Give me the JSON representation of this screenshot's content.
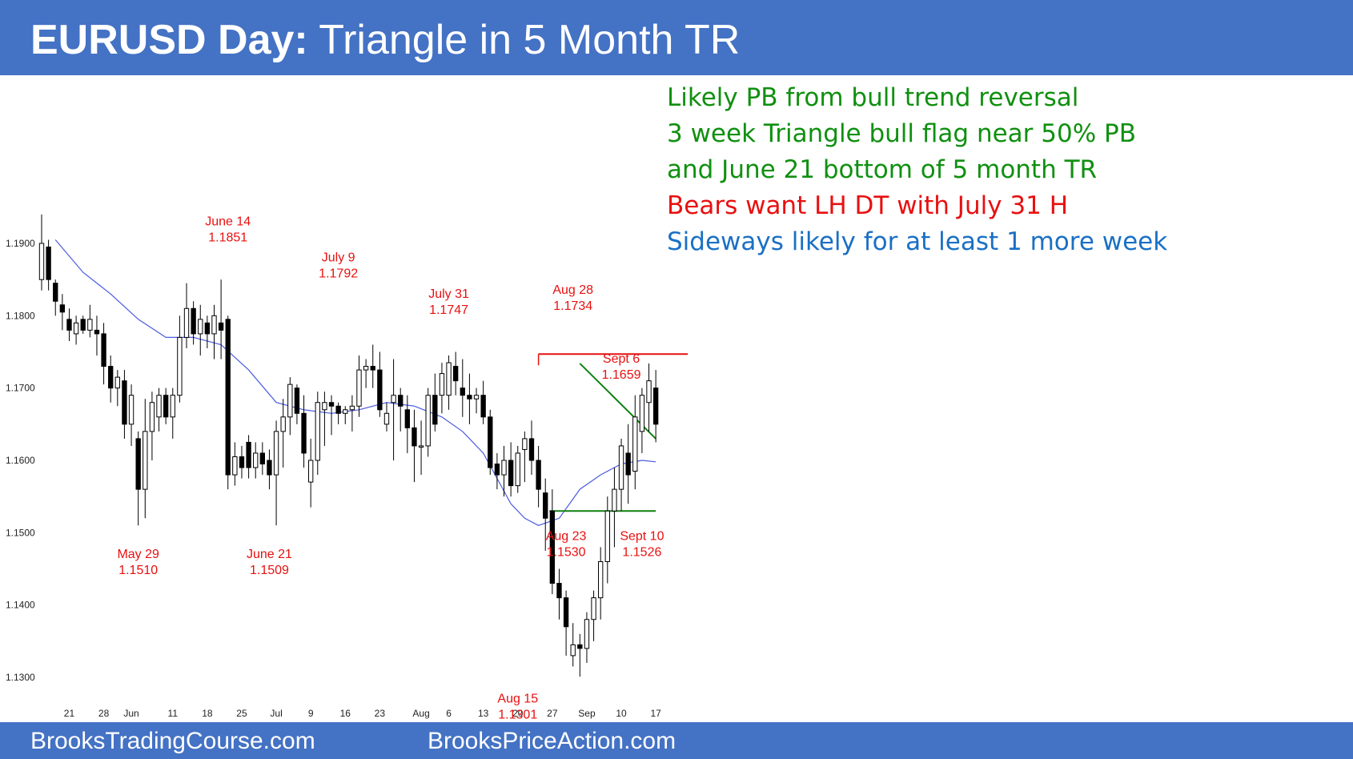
{
  "header": {
    "title_bold": "EURUSD Day:",
    "title_rest": "Triangle in 5 Month TR"
  },
  "notes": [
    {
      "text": "Likely PB from bull trend reversal",
      "color": "#109010"
    },
    {
      "text": "3 week Triangle bull flag near 50% PB",
      "color": "#109010"
    },
    {
      "text": "and June 21 bottom of 5 month TR",
      "color": "#109010"
    },
    {
      "text": "Bears want LH DT with July 31 H",
      "color": "#e81010"
    },
    {
      "text": "Sideways likely for at least 1 more week",
      "color": "#1a6fc4"
    }
  ],
  "footer": {
    "left_link": "BrooksTradingCourse.com",
    "right_link": "BrooksPriceAction.com"
  },
  "colors": {
    "header_bg": "#4472c4",
    "bull_candle": "#ffffff",
    "bear_candle": "#000000",
    "moving_average": "#4a5be0",
    "resistance_line": "#e81010",
    "triangle_lines": "#108010",
    "annotation_text": "#e81010"
  },
  "chart_data": {
    "type": "candlestick",
    "y_tick_labels": [
      "1.1900",
      "1.1800",
      "1.1700",
      "1.1600",
      "1.1500",
      "1.1400",
      "1.1300"
    ],
    "y_ticks": [
      1.19,
      1.18,
      1.17,
      1.16,
      1.15,
      1.14,
      1.13
    ],
    "ylim": [
      1.1265,
      1.1965
    ],
    "x_tick_labels": [
      "21",
      "28",
      "Jun",
      "11",
      "18",
      "25",
      "Jul",
      "9",
      "16",
      "23",
      "Aug",
      "6",
      "13",
      "20",
      "27",
      "Sep",
      "10",
      "17"
    ],
    "x_tick_bar_index": [
      4,
      9,
      13,
      19,
      24,
      29,
      34,
      39,
      44,
      49,
      55,
      59,
      64,
      69,
      74,
      79,
      84,
      89
    ],
    "bar_count": 90,
    "candles": [
      [
        1.185,
        1.194,
        1.1835,
        1.19
      ],
      [
        1.1895,
        1.1905,
        1.1835,
        1.185
      ],
      [
        1.1845,
        1.185,
        1.18,
        1.182
      ],
      [
        1.1815,
        1.183,
        1.178,
        1.1805
      ],
      [
        1.1795,
        1.181,
        1.1765,
        1.178
      ],
      [
        1.1775,
        1.18,
        1.176,
        1.179
      ],
      [
        1.1795,
        1.18,
        1.1775,
        1.178
      ],
      [
        1.178,
        1.1815,
        1.177,
        1.1795
      ],
      [
        1.178,
        1.18,
        1.1745,
        1.1775
      ],
      [
        1.1775,
        1.179,
        1.1705,
        1.173
      ],
      [
        1.173,
        1.1745,
        1.168,
        1.17
      ],
      [
        1.17,
        1.1725,
        1.1675,
        1.1715
      ],
      [
        1.171,
        1.1725,
        1.163,
        1.165
      ],
      [
        1.165,
        1.1705,
        1.162,
        1.169
      ],
      [
        1.163,
        1.164,
        1.151,
        1.156
      ],
      [
        1.156,
        1.1685,
        1.152,
        1.164
      ],
      [
        1.164,
        1.1695,
        1.16,
        1.168
      ],
      [
        1.166,
        1.17,
        1.164,
        1.169
      ],
      [
        1.169,
        1.17,
        1.165,
        1.166
      ],
      [
        1.166,
        1.17,
        1.163,
        1.169
      ],
      [
        1.169,
        1.18,
        1.168,
        1.177
      ],
      [
        1.177,
        1.1845,
        1.1755,
        1.181
      ],
      [
        1.181,
        1.182,
        1.176,
        1.1775
      ],
      [
        1.1775,
        1.1815,
        1.1745,
        1.1795
      ],
      [
        1.179,
        1.18,
        1.1755,
        1.1775
      ],
      [
        1.1775,
        1.1815,
        1.174,
        1.18
      ],
      [
        1.179,
        1.185,
        1.174,
        1.178
      ],
      [
        1.1795,
        1.18,
        1.156,
        1.158
      ],
      [
        1.158,
        1.1625,
        1.1565,
        1.1605
      ],
      [
        1.1605,
        1.162,
        1.1575,
        1.159
      ],
      [
        1.1625,
        1.1635,
        1.1575,
        1.159
      ],
      [
        1.159,
        1.1625,
        1.1575,
        1.161
      ],
      [
        1.161,
        1.1625,
        1.158,
        1.1595
      ],
      [
        1.16,
        1.1615,
        1.156,
        1.158
      ],
      [
        1.158,
        1.1655,
        1.151,
        1.164
      ],
      [
        1.164,
        1.1685,
        1.159,
        1.166
      ],
      [
        1.166,
        1.1715,
        1.1635,
        1.1705
      ],
      [
        1.17,
        1.1705,
        1.165,
        1.1665
      ],
      [
        1.1665,
        1.169,
        1.159,
        1.161
      ],
      [
        1.157,
        1.163,
        1.1535,
        1.16
      ],
      [
        1.16,
        1.1695,
        1.158,
        1.168
      ],
      [
        1.167,
        1.1695,
        1.162,
        1.168
      ],
      [
        1.168,
        1.169,
        1.1635,
        1.1675
      ],
      [
        1.1675,
        1.168,
        1.165,
        1.1665
      ],
      [
        1.1665,
        1.1675,
        1.165,
        1.167
      ],
      [
        1.167,
        1.169,
        1.164,
        1.1675
      ],
      [
        1.1675,
        1.1745,
        1.166,
        1.1725
      ],
      [
        1.1725,
        1.174,
        1.17,
        1.173
      ],
      [
        1.173,
        1.176,
        1.17,
        1.1725
      ],
      [
        1.1725,
        1.175,
        1.166,
        1.167
      ],
      [
        1.165,
        1.168,
        1.164,
        1.1665
      ],
      [
        1.168,
        1.174,
        1.16,
        1.169
      ],
      [
        1.169,
        1.17,
        1.164,
        1.1675
      ],
      [
        1.167,
        1.169,
        1.161,
        1.1645
      ],
      [
        1.1645,
        1.167,
        1.157,
        1.162
      ],
      [
        1.162,
        1.1655,
        1.158,
        1.162
      ],
      [
        1.162,
        1.17,
        1.1605,
        1.169
      ],
      [
        1.169,
        1.172,
        1.164,
        1.165
      ],
      [
        1.169,
        1.1735,
        1.1665,
        1.172
      ],
      [
        1.169,
        1.1745,
        1.167,
        1.1735
      ],
      [
        1.173,
        1.175,
        1.169,
        1.171
      ],
      [
        1.17,
        1.174,
        1.166,
        1.169
      ],
      [
        1.169,
        1.172,
        1.165,
        1.1685
      ],
      [
        1.1685,
        1.17,
        1.1665,
        1.169
      ],
      [
        1.169,
        1.171,
        1.165,
        1.166
      ],
      [
        1.166,
        1.167,
        1.158,
        1.159
      ],
      [
        1.1595,
        1.161,
        1.156,
        1.158
      ],
      [
        1.158,
        1.162,
        1.155,
        1.16
      ],
      [
        1.16,
        1.1625,
        1.155,
        1.1565
      ],
      [
        1.1565,
        1.162,
        1.1555,
        1.161
      ],
      [
        1.1615,
        1.164,
        1.157,
        1.163
      ],
      [
        1.163,
        1.1655,
        1.158,
        1.16
      ],
      [
        1.16,
        1.162,
        1.1535,
        1.156
      ],
      [
        1.1555,
        1.1575,
        1.1475,
        1.152
      ],
      [
        1.153,
        1.156,
        1.1415,
        1.143
      ],
      [
        1.143,
        1.145,
        1.138,
        1.141
      ],
      [
        1.141,
        1.142,
        1.133,
        1.137
      ],
      [
        1.133,
        1.1375,
        1.1315,
        1.1345
      ],
      [
        1.1345,
        1.136,
        1.1301,
        1.134
      ],
      [
        1.134,
        1.139,
        1.132,
        1.138
      ],
      [
        1.138,
        1.142,
        1.135,
        1.141
      ],
      [
        1.141,
        1.148,
        1.138,
        1.146
      ],
      [
        1.146,
        1.155,
        1.143,
        1.153
      ],
      [
        1.153,
        1.159,
        1.148,
        1.156
      ],
      [
        1.156,
        1.163,
        1.153,
        1.162
      ],
      [
        1.161,
        1.165,
        1.154,
        1.158
      ],
      [
        1.1585,
        1.169,
        1.156,
        1.166
      ],
      [
        1.164,
        1.17,
        1.161,
        1.169
      ],
      [
        1.168,
        1.1734,
        1.164,
        1.171
      ],
      [
        1.17,
        1.1725,
        1.1625,
        1.165
      ]
    ],
    "moving_average": [
      [
        2,
        1.1905
      ],
      [
        6,
        1.186
      ],
      [
        10,
        1.183
      ],
      [
        14,
        1.1795
      ],
      [
        18,
        1.177
      ],
      [
        22,
        1.177
      ],
      [
        26,
        1.176
      ],
      [
        30,
        1.1725
      ],
      [
        34,
        1.168
      ],
      [
        38,
        1.167
      ],
      [
        42,
        1.1665
      ],
      [
        46,
        1.167
      ],
      [
        50,
        1.168
      ],
      [
        54,
        1.1675
      ],
      [
        58,
        1.166
      ],
      [
        61,
        1.164
      ],
      [
        64,
        1.161
      ],
      [
        66,
        1.1575
      ],
      [
        68,
        1.154
      ],
      [
        70,
        1.152
      ],
      [
        72,
        1.151
      ],
      [
        75,
        1.152
      ],
      [
        78,
        1.156
      ],
      [
        81,
        1.158
      ],
      [
        84,
        1.1595
      ],
      [
        87,
        1.16
      ],
      [
        89,
        1.1598
      ]
    ],
    "resistance_line": {
      "from_bar": 72,
      "to_bar": 89,
      "value": 1.1747
    },
    "triangle_upper": [
      [
        78,
        1.1734
      ],
      [
        89,
        1.163
      ]
    ],
    "triangle_lower": [
      [
        78,
        1.153
      ],
      [
        89,
        1.153
      ]
    ],
    "annotations": [
      {
        "lines": [
          "May 29",
          "1.1510"
        ],
        "bar": 14,
        "value": 1.1465
      },
      {
        "lines": [
          "June 14",
          "1.1851"
        ],
        "bar": 27,
        "value": 1.1925
      },
      {
        "lines": [
          "June 21",
          "1.1509"
        ],
        "bar": 33,
        "value": 1.1465
      },
      {
        "lines": [
          "July 9",
          "1.1792"
        ],
        "bar": 43,
        "value": 1.1875
      },
      {
        "lines": [
          "July 31",
          "1.1747"
        ],
        "bar": 59,
        "value": 1.1825
      },
      {
        "lines": [
          "Aug 28",
          "1.1734"
        ],
        "bar": 77,
        "value": 1.183
      },
      {
        "lines": [
          "Sept 6",
          "1.1659"
        ],
        "bar": 84,
        "value": 1.1735
      },
      {
        "lines": [
          "Aug 23",
          "1.1530"
        ],
        "bar": 76,
        "value": 1.149
      },
      {
        "lines": [
          "Sept 10",
          "1.1526"
        ],
        "bar": 87,
        "value": 1.149
      },
      {
        "lines": [
          "Aug 15",
          "1.1301"
        ],
        "bar": 69,
        "value": 1.1265
      }
    ]
  }
}
